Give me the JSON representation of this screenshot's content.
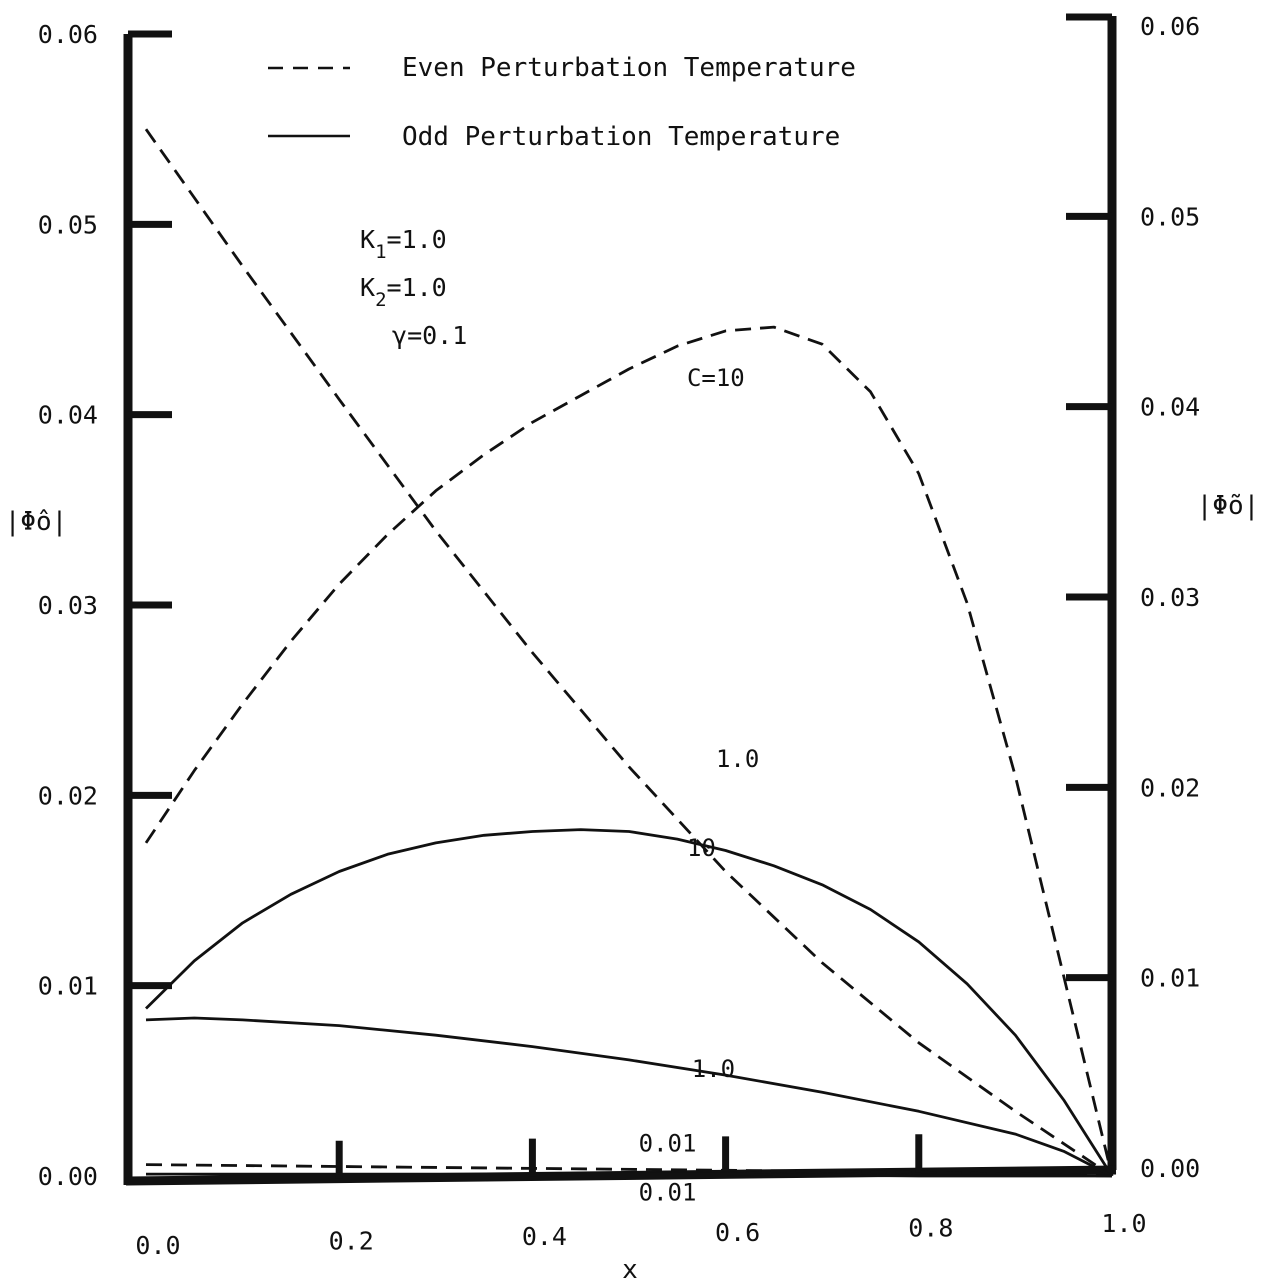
{
  "chart_data": {
    "type": "line",
    "title": "",
    "xlabel": "x",
    "ylabel_left": "|Φ̂o|",
    "ylabel_right": "|Φ̃o|",
    "xlim": [
      0.0,
      1.0
    ],
    "ylim": [
      0.0,
      0.06
    ],
    "grid": false,
    "legend_position": "top",
    "x_ticks": [
      "0.0",
      "0.2",
      "0.4",
      "0.6",
      "0.8",
      "1.0"
    ],
    "y_ticks_left": [
      "0.00",
      "0.01",
      "0.02",
      "0.03",
      "0.04",
      "0.05",
      "0.06"
    ],
    "y_ticks_right": [
      "0.00",
      "0.01",
      "0.02",
      "0.03",
      "0.04",
      "0.05",
      "0.06"
    ],
    "legend": [
      {
        "label": "Even Perturbation Temperature",
        "style": "dashed"
      },
      {
        "label": "Odd Perturbation Temperature",
        "style": "solid"
      }
    ],
    "parameters": [
      {
        "name": "K",
        "subscript": "1",
        "value": "=1.0"
      },
      {
        "name": "K",
        "subscript": "2",
        "value": "=1.0"
      },
      {
        "name": "γ",
        "subscript": "",
        "value": "=0.1"
      }
    ],
    "series": [
      {
        "label": "C=10",
        "style": "dashed",
        "label_at": [
          0.56,
          0.0415
        ],
        "x": [
          0.0,
          0.05,
          0.1,
          0.15,
          0.2,
          0.25,
          0.3,
          0.35,
          0.4,
          0.45,
          0.5,
          0.55,
          0.6,
          0.65,
          0.7,
          0.75,
          0.8,
          0.85,
          0.9,
          0.95,
          1.0
        ],
        "y": [
          0.0175,
          0.0213,
          0.0248,
          0.0281,
          0.0311,
          0.0337,
          0.036,
          0.0379,
          0.0396,
          0.041,
          0.0424,
          0.0436,
          0.0444,
          0.0446,
          0.0437,
          0.0412,
          0.0369,
          0.0301,
          0.021,
          0.0105,
          0.0
        ]
      },
      {
        "label": "1.0",
        "style": "dashed",
        "label_at": [
          0.59,
          0.0215
        ],
        "x": [
          0.0,
          0.1,
          0.2,
          0.3,
          0.4,
          0.5,
          0.6,
          0.7,
          0.8,
          0.9,
          1.0
        ],
        "y": [
          0.055,
          0.0478,
          0.0408,
          0.0339,
          0.0275,
          0.0215,
          0.016,
          0.0112,
          0.007,
          0.0034,
          0.0
        ]
      },
      {
        "label": "0.01",
        "style": "dashed",
        "label_at": [
          0.51,
          0.0013
        ],
        "x": [
          0.0,
          0.2,
          0.4,
          0.6,
          0.8,
          1.0
        ],
        "y": [
          0.0006,
          0.0005,
          0.0004,
          0.0003,
          0.0002,
          0.0
        ]
      },
      {
        "label": "10",
        "style": "solid",
        "label_at": [
          0.56,
          0.0168
        ],
        "x": [
          0.0,
          0.05,
          0.1,
          0.15,
          0.2,
          0.25,
          0.3,
          0.35,
          0.4,
          0.45,
          0.5,
          0.55,
          0.6,
          0.65,
          0.7,
          0.75,
          0.8,
          0.85,
          0.9,
          0.95,
          1.0
        ],
        "y": [
          0.0088,
          0.0113,
          0.0133,
          0.0148,
          0.016,
          0.0169,
          0.0175,
          0.0179,
          0.0181,
          0.0182,
          0.0181,
          0.0177,
          0.0171,
          0.0163,
          0.0153,
          0.014,
          0.0123,
          0.0101,
          0.0074,
          0.004,
          0.0
        ]
      },
      {
        "label": "1.0",
        "style": "solid",
        "label_at": [
          0.565,
          0.0052
        ],
        "x": [
          0.0,
          0.05,
          0.1,
          0.2,
          0.3,
          0.4,
          0.5,
          0.6,
          0.7,
          0.8,
          0.9,
          0.95,
          1.0
        ],
        "y": [
          0.0082,
          0.0083,
          0.0082,
          0.0079,
          0.0074,
          0.0068,
          0.0061,
          0.0053,
          0.0044,
          0.0034,
          0.0022,
          0.0013,
          0.0
        ]
      },
      {
        "label": "0.01",
        "style": "solid",
        "label_at": [
          0.51,
          -0.0013
        ],
        "x": [
          0.0,
          0.2,
          0.4,
          0.6,
          0.8,
          1.0
        ],
        "y": [
          0.0001,
          0.0001,
          0.0001,
          0.0001,
          0.0,
          0.0
        ]
      }
    ]
  }
}
